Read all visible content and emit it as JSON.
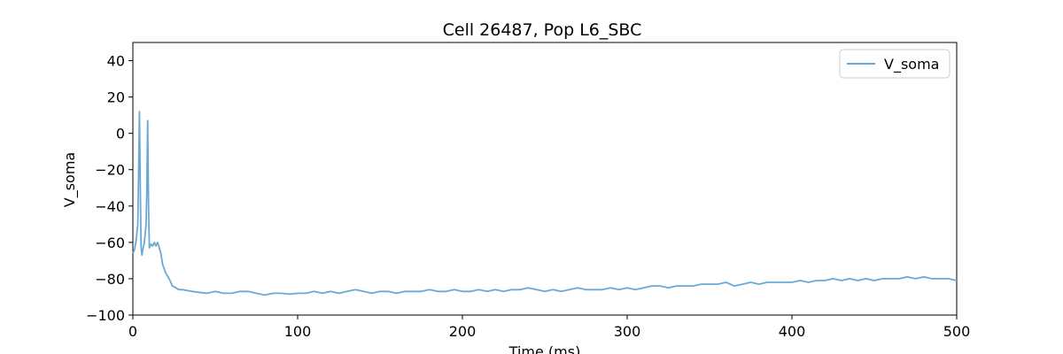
{
  "chart_data": {
    "type": "line",
    "title": "Cell 26487, Pop L6_SBC",
    "xlabel": "Time (ms)",
    "ylabel": "V_soma",
    "xlim": [
      0,
      500
    ],
    "ylim": [
      -100,
      50
    ],
    "xticks": [
      0,
      100,
      200,
      300,
      400,
      500
    ],
    "yticks": [
      -100,
      -80,
      -60,
      -40,
      -20,
      0,
      20,
      40
    ],
    "grid": false,
    "legend": {
      "position": "top-right",
      "entries": [
        "V_soma"
      ]
    },
    "series": [
      {
        "name": "V_soma",
        "color": "#6aa9d6",
        "x": [
          0,
          1,
          2,
          3,
          3.5,
          4,
          4.5,
          5,
          5.5,
          6,
          7,
          8,
          8.5,
          9,
          9.5,
          10,
          11,
          12,
          13,
          14,
          15,
          16,
          17,
          18,
          20,
          22,
          24,
          26,
          28,
          30,
          33,
          36,
          40,
          45,
          50,
          55,
          60,
          65,
          70,
          75,
          80,
          85,
          90,
          95,
          100,
          105,
          110,
          115,
          120,
          125,
          130,
          135,
          140,
          145,
          150,
          155,
          160,
          165,
          170,
          175,
          180,
          185,
          190,
          195,
          200,
          205,
          210,
          215,
          220,
          225,
          230,
          235,
          240,
          245,
          250,
          255,
          260,
          265,
          270,
          275,
          280,
          285,
          290,
          295,
          300,
          305,
          310,
          315,
          320,
          325,
          330,
          335,
          340,
          345,
          350,
          355,
          360,
          365,
          370,
          375,
          380,
          385,
          390,
          395,
          400,
          405,
          410,
          415,
          420,
          425,
          430,
          435,
          440,
          445,
          450,
          455,
          460,
          465,
          470,
          475,
          480,
          485,
          490,
          495,
          500
        ],
        "y": [
          -66,
          -64,
          -59,
          -50,
          -20,
          12,
          -30,
          -63,
          -67,
          -64,
          -60,
          -50,
          -30,
          7,
          -40,
          -63,
          -61,
          -62,
          -60,
          -62,
          -60,
          -63,
          -66,
          -72,
          -77,
          -80,
          -84,
          -85,
          -86,
          -86,
          -86.5,
          -87,
          -87.5,
          -88,
          -87,
          -88,
          -88,
          -87,
          -87,
          -88,
          -89,
          -88,
          -88,
          -88.5,
          -88,
          -88,
          -87,
          -88,
          -87,
          -88,
          -87,
          -86,
          -87,
          -88,
          -87,
          -87,
          -88,
          -87,
          -87,
          -87,
          -86,
          -87,
          -87,
          -86,
          -87,
          -87,
          -86,
          -87,
          -86,
          -87,
          -86,
          -86,
          -85,
          -86,
          -87,
          -86,
          -87,
          -86,
          -85,
          -86,
          -86,
          -86,
          -85,
          -86,
          -85,
          -86,
          -85,
          -84,
          -84,
          -85,
          -84,
          -84,
          -84,
          -83,
          -83,
          -83,
          -82,
          -84,
          -83,
          -82,
          -83,
          -82,
          -82,
          -82,
          -82,
          -81,
          -82,
          -81,
          -81,
          -80,
          -81,
          -80,
          -81,
          -80,
          -81,
          -80,
          -80,
          -80,
          -79,
          -80,
          -79,
          -80,
          -80,
          -80,
          -81
        ]
      }
    ]
  }
}
